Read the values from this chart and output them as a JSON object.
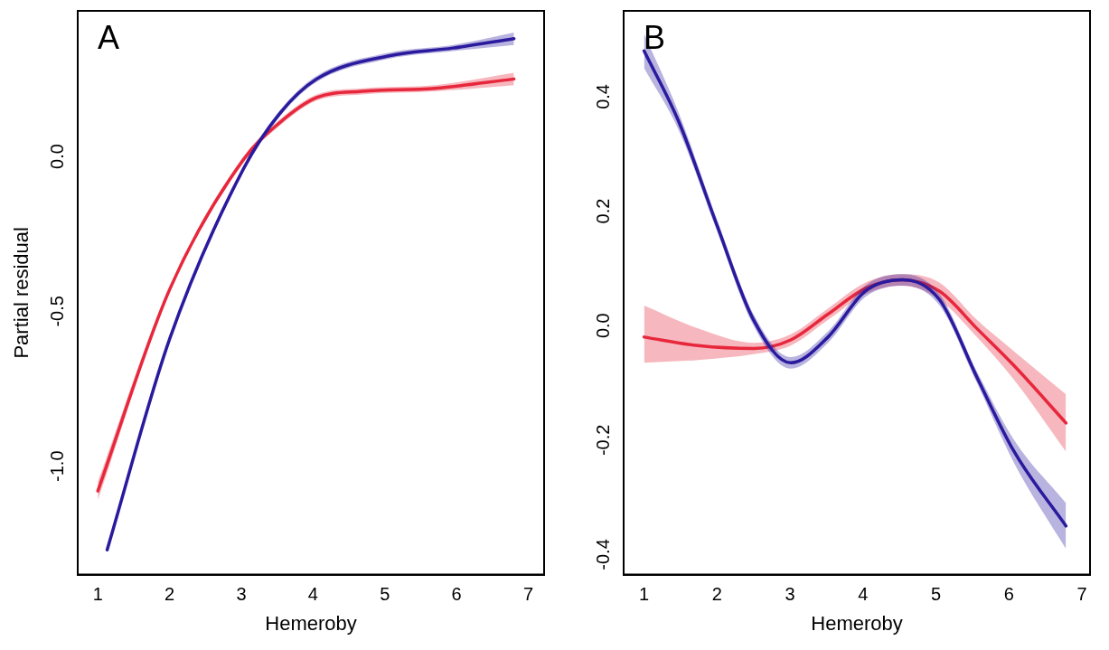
{
  "chart_data": [
    {
      "type": "line",
      "title": "A",
      "xlabel": "Hemeroby",
      "ylabel": "Partial residual",
      "xlim": [
        0.72,
        7.22
      ],
      "xticks": [
        1,
        2,
        3,
        4,
        5,
        6,
        7
      ],
      "ylim": [
        -1.35,
        0.47
      ],
      "yticks": [
        {
          "value": -1,
          "label": "-1.0"
        },
        {
          "value": -0.5,
          "label": "-0.5"
        },
        {
          "value": 0,
          "label": "0.0"
        }
      ],
      "series": [
        {
          "color": "#2a1a9e",
          "x": [
            1.13,
            2,
            3.03,
            3.54,
            4.05,
            5.06,
            5.95,
            6.8
          ],
          "values": [
            -1.27,
            -0.59,
            -0.04,
            0.14,
            0.25,
            0.325,
            0.35,
            0.38
          ],
          "lower": [
            -1.28,
            -0.6,
            -0.05,
            0.13,
            0.24,
            0.315,
            0.34,
            0.36
          ],
          "upper": [
            -1.26,
            -0.58,
            -0.03,
            0.15,
            0.26,
            0.335,
            0.36,
            0.4
          ]
        },
        {
          "color": "#e8283c",
          "x": [
            1,
            2,
            3.03,
            3.54,
            4.05,
            4.68,
            5.7,
            6.8
          ],
          "values": [
            -1.08,
            -0.43,
            -0.01,
            0.11,
            0.19,
            0.21,
            0.22,
            0.25
          ],
          "lower": [
            -1.11,
            -0.44,
            -0.02,
            0.1,
            0.18,
            0.2,
            0.21,
            0.23
          ],
          "upper": [
            -1.05,
            -0.42,
            0,
            0.12,
            0.2,
            0.22,
            0.23,
            0.27
          ]
        }
      ]
    },
    {
      "type": "line",
      "title": "B",
      "xlabel": "Hemeroby",
      "xlim": [
        0.72,
        7.11
      ],
      "xticks": [
        1,
        2,
        3,
        4,
        5,
        6,
        7
      ],
      "ylim": [
        -0.435,
        0.55
      ],
      "yticks": [
        -0.4,
        -0.2,
        {
          "value": 0,
          "label": "0.0"
        },
        0.2,
        0.4
      ],
      "series": [
        {
          "color": "#2a1a9e",
          "x": [
            1,
            1.48,
            2,
            2.5,
            3.01,
            3.52,
            4.03,
            4.54,
            5.05,
            5.56,
            6.07,
            6.78
          ],
          "values": [
            0.48,
            0.355,
            0.175,
            0.01,
            -0.065,
            -0.02,
            0.06,
            0.08,
            0.045,
            -0.09,
            -0.22,
            -0.35
          ],
          "lower": [
            0.45,
            0.34,
            0.165,
            0,
            -0.075,
            -0.03,
            0.05,
            0.07,
            0.035,
            -0.1,
            -0.24,
            -0.39
          ],
          "upper": [
            0.51,
            0.37,
            0.185,
            0.02,
            -0.055,
            -0.01,
            0.07,
            0.09,
            0.055,
            -0.08,
            -0.2,
            -0.31
          ]
        },
        {
          "color": "#e8283c",
          "x": [
            1,
            1.74,
            2.5,
            3.01,
            3.52,
            4.03,
            4.54,
            5.05,
            5.56,
            6.07,
            6.78
          ],
          "values": [
            -0.02,
            -0.035,
            -0.04,
            -0.025,
            0.02,
            0.065,
            0.08,
            0.06,
            -0.005,
            -0.07,
            -0.17
          ],
          "lower": [
            -0.065,
            -0.06,
            -0.05,
            -0.035,
            0.01,
            0.055,
            0.07,
            0.045,
            -0.02,
            -0.095,
            -0.22
          ],
          "upper": [
            0.035,
            -0.005,
            -0.03,
            -0.015,
            0.03,
            0.075,
            0.09,
            0.075,
            0.01,
            -0.045,
            -0.12
          ]
        }
      ]
    }
  ]
}
